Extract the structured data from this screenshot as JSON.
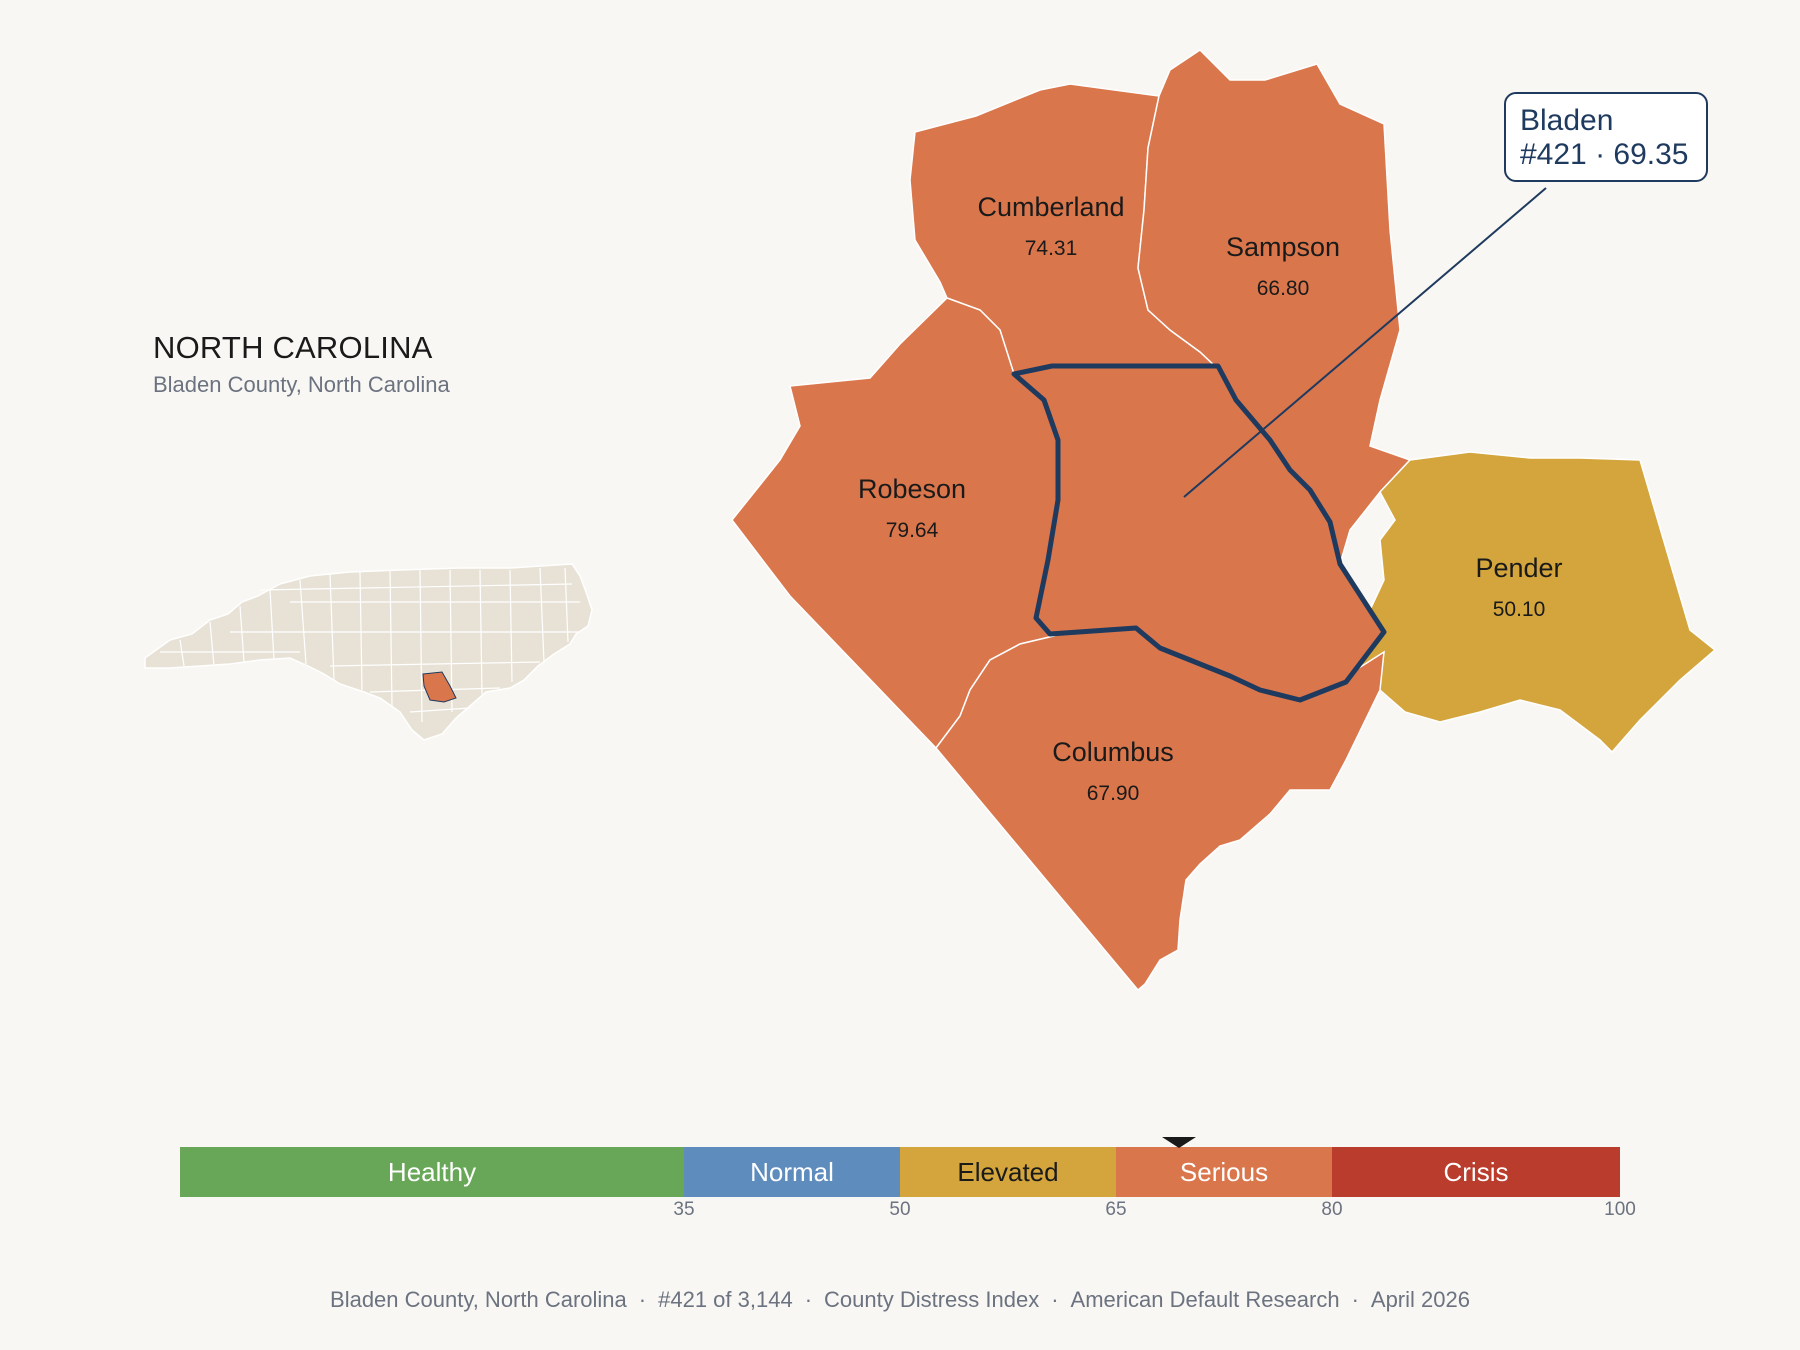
{
  "header": {
    "title": "NORTH CAROLINA",
    "subtitle": "Bladen County, North Carolina"
  },
  "colors": {
    "healthy": "#68a758",
    "normal": "#5e8cbd",
    "elevated": "#d3a53c",
    "serious": "#da764b",
    "crisis": "#b93c2c",
    "highlight_outline": "#1f3a5f",
    "background": "#f9f7f3",
    "locator_fill": "#e8e2d6"
  },
  "map": {
    "focus_county": "Bladen",
    "counties": [
      {
        "name": "Cumberland",
        "score": "74.31",
        "category": "serious"
      },
      {
        "name": "Sampson",
        "score": "66.80",
        "category": "serious"
      },
      {
        "name": "Robeson",
        "score": "79.64",
        "category": "serious"
      },
      {
        "name": "Pender",
        "score": "50.10",
        "category": "elevated"
      },
      {
        "name": "Columbus",
        "score": "67.90",
        "category": "serious"
      },
      {
        "name": "Bladen",
        "score": "69.35",
        "category": "serious"
      }
    ]
  },
  "callout": {
    "name": "Bladen",
    "rank_score": "#421 · 69.35"
  },
  "scale": {
    "segments": [
      {
        "label": "Healthy",
        "from": 0,
        "to": 35,
        "category": "healthy"
      },
      {
        "label": "Normal",
        "from": 35,
        "to": 50,
        "category": "normal"
      },
      {
        "label": "Elevated",
        "from": 50,
        "to": 65,
        "category": "elevated"
      },
      {
        "label": "Serious",
        "from": 65,
        "to": 80,
        "category": "serious"
      },
      {
        "label": "Crisis",
        "from": 80,
        "to": 100,
        "category": "crisis"
      }
    ],
    "ticks": [
      "35",
      "50",
      "65",
      "80",
      "100"
    ],
    "marker_value": 69.35
  },
  "footer": {
    "county": "Bladen County, North Carolina",
    "rank": "#421 of 3,144",
    "index": "County Distress Index",
    "source": "American Default Research",
    "date": "April 2026",
    "separator": "·"
  }
}
